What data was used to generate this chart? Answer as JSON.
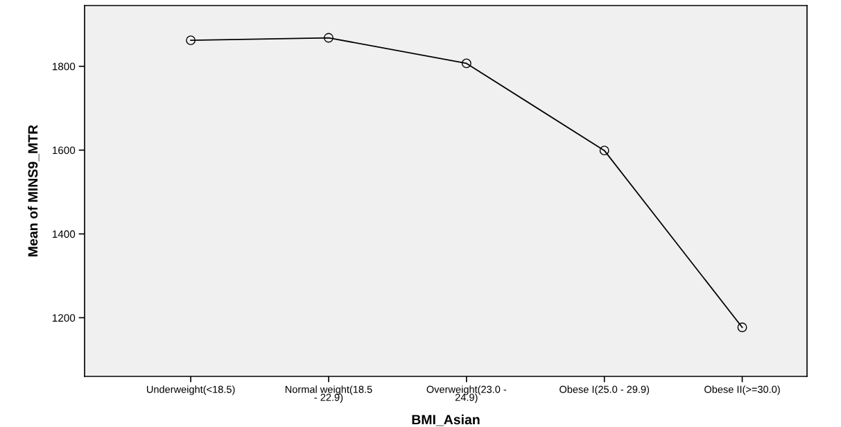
{
  "chart_data": {
    "type": "line",
    "xlabel": "BMI_Asian",
    "ylabel": "Mean of MINS9_MTR",
    "categories": [
      "Underweight(<18.5)",
      "Normal weight(18.5\n- 22.9)",
      "Overweight(23.0 -\n24.9)",
      "Obese I(25.0 - 29.9)",
      "Obese II(>=30.0)"
    ],
    "series": [
      {
        "color": "#000000",
        "values": [
          1862,
          1868,
          1807,
          1599,
          1177
        ]
      }
    ],
    "ylim": [
      1060,
      1945
    ],
    "yticks": [
      1200,
      1400,
      1600,
      1800
    ],
    "marker": "circle",
    "line_style": "solid",
    "grid": false,
    "legend": false
  }
}
